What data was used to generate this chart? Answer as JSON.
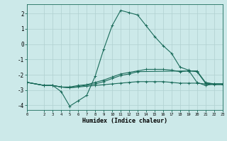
{
  "title": "",
  "xlabel": "Humidex (Indice chaleur)",
  "ylabel": "",
  "background_color": "#cce9e9",
  "grid_color": "#b0d0d0",
  "line_color": "#1a6b5a",
  "xlim": [
    0,
    23
  ],
  "ylim": [
    -4.3,
    2.6
  ],
  "yticks": [
    -4,
    -3,
    -2,
    -1,
    0,
    1,
    2
  ],
  "xticks": [
    0,
    2,
    3,
    4,
    5,
    6,
    7,
    8,
    9,
    10,
    11,
    12,
    13,
    14,
    15,
    16,
    17,
    18,
    19,
    20,
    21,
    22,
    23
  ],
  "lines": [
    {
      "x": [
        0,
        2,
        3,
        4,
        5,
        6,
        7,
        8,
        9,
        10,
        11,
        12,
        13,
        14,
        15,
        16,
        17,
        18,
        19,
        20,
        21,
        22,
        23
      ],
      "y": [
        -2.5,
        -2.7,
        -2.7,
        -3.1,
        -4.05,
        -3.7,
        -3.35,
        -2.1,
        -0.35,
        1.2,
        2.2,
        2.05,
        1.9,
        1.2,
        0.5,
        -0.1,
        -0.6,
        -1.5,
        -1.7,
        -2.5,
        -2.7,
        -2.6,
        -2.6
      ]
    },
    {
      "x": [
        0,
        2,
        3,
        4,
        5,
        6,
        7,
        8,
        9,
        10,
        11,
        12,
        13,
        14,
        15,
        16,
        17,
        18,
        19,
        20,
        21,
        22,
        23
      ],
      "y": [
        -2.5,
        -2.7,
        -2.7,
        -2.8,
        -2.8,
        -2.7,
        -2.65,
        -2.5,
        -2.35,
        -2.15,
        -1.95,
        -1.85,
        -1.75,
        -1.65,
        -1.65,
        -1.65,
        -1.7,
        -1.8,
        -1.75,
        -1.75,
        -2.5,
        -2.6,
        -2.6
      ]
    },
    {
      "x": [
        0,
        2,
        3,
        4,
        5,
        8,
        9,
        10,
        11,
        12,
        13,
        19,
        20,
        21,
        22,
        23
      ],
      "y": [
        -2.5,
        -2.7,
        -2.7,
        -2.8,
        -2.85,
        -2.6,
        -2.45,
        -2.25,
        -2.05,
        -1.95,
        -1.8,
        -1.75,
        -1.8,
        -2.55,
        -2.6,
        -2.6
      ]
    },
    {
      "x": [
        0,
        2,
        3,
        4,
        5,
        6,
        7,
        8,
        9,
        10,
        11,
        12,
        13,
        14,
        15,
        16,
        17,
        18,
        19,
        20,
        21,
        22,
        23
      ],
      "y": [
        -2.5,
        -2.7,
        -2.7,
        -2.8,
        -2.85,
        -2.8,
        -2.75,
        -2.7,
        -2.65,
        -2.6,
        -2.55,
        -2.5,
        -2.45,
        -2.45,
        -2.45,
        -2.45,
        -2.5,
        -2.55,
        -2.55,
        -2.55,
        -2.6,
        -2.65,
        -2.65
      ]
    }
  ]
}
